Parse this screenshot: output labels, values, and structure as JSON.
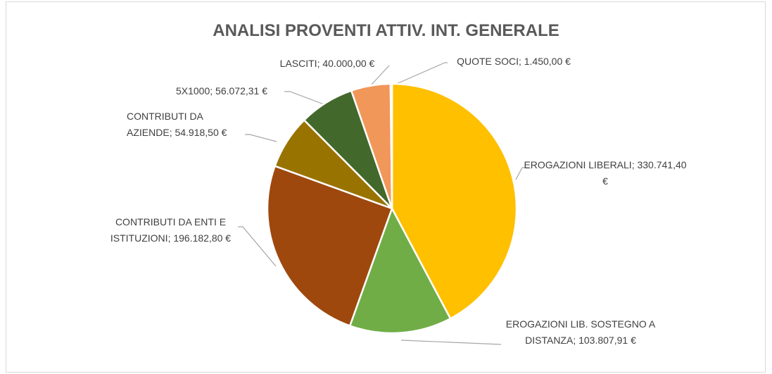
{
  "chart_data": {
    "type": "pie",
    "title": "ANALISI PROVENTI ATTIV. INT. GENERALE",
    "categories": [
      "EROGAZIONI LIBERALI",
      "EROGAZIONI LIB. SOSTEGNO A DISTANZA",
      "CONTRIBUTI DA ENTI E ISTITUZIONI",
      "CONTRIBUTI DA AZIENDE",
      "5X1000",
      "LASCITI",
      "QUOTE SOCI"
    ],
    "values": [
      330741.4,
      103807.91,
      196182.8,
      54918.5,
      56072.31,
      40000.0,
      1450.0
    ],
    "value_labels": [
      "330.741,40 €",
      "103.807,91 €",
      "196.182,80 €",
      "54.918,50 €",
      "56.072,31 €",
      "40.000,00 €",
      "1.450,00 €"
    ],
    "label_separator": "; ",
    "colors": [
      "#FFC000",
      "#70AD47",
      "#9E480E",
      "#997300",
      "#43682B",
      "#F1975A",
      "#A5A5A5"
    ]
  }
}
